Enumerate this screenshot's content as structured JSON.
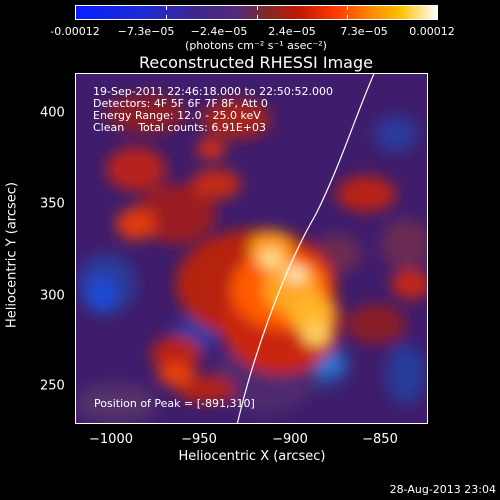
{
  "colorbar": {
    "tick_labels": [
      "-0.00012",
      "−7.3e−05",
      "−2.4e−05",
      "2.4e−05",
      "7.3e−05",
      "0.00012"
    ],
    "units": "(photons cm⁻² s⁻¹ asec⁻²)"
  },
  "title": "Reconstructed RHESSI Image",
  "info": {
    "time": "19-Sep-2011 22:46:18.000 to 22:50:52.000",
    "detectors": "Detectors: 4F 5F 6F 7F 8F, Att 0",
    "energy": "Energy Range: 12.0 - 25.0 keV",
    "clean": "Clean    Total counts: 6.91E+03",
    "peak": "Position of Peak = [-891,310]"
  },
  "axes": {
    "ylabel": "Heliocentric Y (arcsec)",
    "xlabel": "Heliocentric X (arcsec)",
    "yticks": [
      "400",
      "350",
      "300",
      "250"
    ],
    "xticks": [
      "−1000",
      "−950",
      "−900",
      "−850"
    ]
  },
  "footer": {
    "date_stamp": "28-Aug-2013 23:04"
  },
  "colors": {
    "background": "#000000",
    "limb": "#ffffff"
  }
}
